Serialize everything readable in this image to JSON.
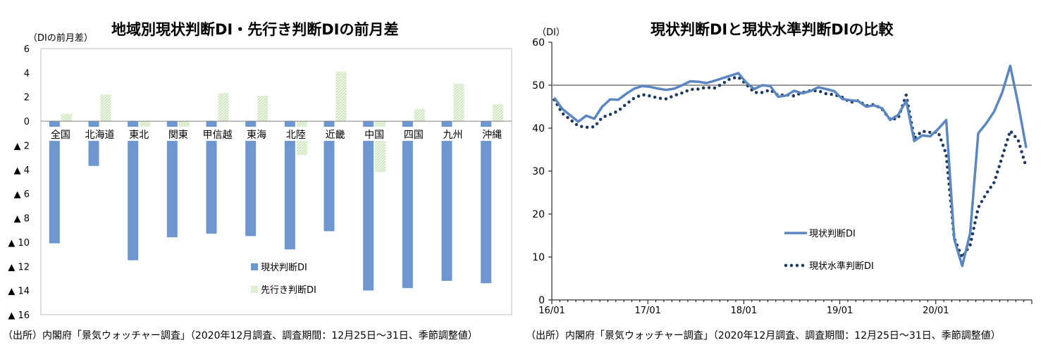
{
  "charts": {
    "left": {
      "title": "地域別現状判断DI・先行き判断DIの前月差",
      "unit": "（DIの前月差）",
      "source": "（出所）内閣府「景気ウォッチャー調査」（2020年12月調査、調査期間：12月25日～31日、季節調整値）"
    },
    "right": {
      "title": "現状判断DIと現状水準判断DIの比較",
      "unit": "（DI）",
      "source": "（出所）内閣府「景気ウォッチャー調査」（2020年12月調査、調査期間：12月25日～31日、季節調整値）"
    }
  },
  "colors": {
    "bar_current": "#6f97cf",
    "bar_outlook": "#c5e3b0",
    "line_current": "#5b86c0",
    "line_level": "#1f3a5f",
    "reference_line": "#999999"
  },
  "chart_data": [
    {
      "type": "bar",
      "title": "地域別現状判断DI・先行き判断DIの前月差",
      "ylabel": "（DIの前月差）",
      "ylim": [
        -16,
        6
      ],
      "yticks": [
        6,
        4,
        2,
        0,
        -2,
        -4,
        -6,
        -8,
        -10,
        -12,
        -14,
        -16
      ],
      "ytick_labels": [
        "6",
        "4",
        "2",
        "0",
        "▲ 2",
        "▲ 4",
        "▲ 6",
        "▲ 8",
        "▲ 10",
        "▲ 12",
        "▲ 14",
        "▲ 16"
      ],
      "categories": [
        "全国",
        "北海道",
        "東北",
        "関東",
        "甲信越",
        "東海",
        "北陸",
        "近畿",
        "中国",
        "四国",
        "九州",
        "沖縄"
      ],
      "series": [
        {
          "name": "現状判断DI",
          "values": [
            -10.1,
            -3.7,
            -11.5,
            -9.6,
            -9.3,
            -9.5,
            -10.6,
            -9.1,
            -14.0,
            -13.8,
            -13.2,
            -13.4
          ]
        },
        {
          "name": "先行き判断DI",
          "values": [
            0.6,
            2.2,
            -0.9,
            -0.9,
            2.3,
            2.1,
            -2.8,
            4.1,
            -4.2,
            1.0,
            3.1,
            1.4
          ]
        }
      ],
      "legend_position": "bottom-right",
      "grid": false
    },
    {
      "type": "line",
      "title": "現状判断DIと現状水準判断DIの比較",
      "ylabel": "（DI）",
      "ylim": [
        0,
        60
      ],
      "yticks": [
        0,
        10,
        20,
        30,
        40,
        50,
        60
      ],
      "xticks": [
        "16/01",
        "17/01",
        "18/01",
        "19/01",
        "20/01"
      ],
      "x_start": "2016-01",
      "x_end": "2020-12",
      "reference_line": 50,
      "series": [
        {
          "name": "現状判断DI",
          "style": "solid",
          "values": [
            47.1,
            44.5,
            43.0,
            41.5,
            42.9,
            42.2,
            45.0,
            46.7,
            46.6,
            48.0,
            49.2,
            49.8,
            49.6,
            49.2,
            48.9,
            49.2,
            50.0,
            50.9,
            50.8,
            50.5,
            51.0,
            51.6,
            52.2,
            52.8,
            50.6,
            49.1,
            50.0,
            49.8,
            47.3,
            47.6,
            48.7,
            48.1,
            48.6,
            49.5,
            49.1,
            48.6,
            46.8,
            46.5,
            46.3,
            45.0,
            45.3,
            44.6,
            41.9,
            43.1,
            46.4,
            37.0,
            38.3,
            38.1,
            39.8,
            41.9,
            14.2,
            7.9,
            15.6,
            38.8,
            41.1,
            43.9,
            48.3,
            54.5,
            45.6,
            35.4
          ]
        },
        {
          "name": "現状水準判断DI",
          "style": "dotted",
          "values": [
            46.6,
            43.5,
            42.0,
            40.5,
            40.2,
            40.3,
            42.5,
            43.2,
            44.0,
            45.6,
            47.0,
            47.8,
            47.5,
            47.0,
            46.8,
            47.6,
            48.2,
            49.0,
            49.1,
            49.5,
            49.3,
            50.3,
            51.5,
            51.9,
            50.2,
            48.3,
            48.3,
            48.9,
            47.6,
            47.8,
            47.5,
            48.3,
            48.7,
            48.7,
            48.0,
            47.8,
            47.2,
            46.0,
            46.4,
            45.2,
            45.5,
            44.4,
            42.0,
            42.3,
            47.7,
            37.7,
            39.3,
            39.0,
            39.1,
            33.9,
            14.4,
            9.9,
            12.8,
            21.5,
            24.7,
            27.4,
            33.3,
            39.4,
            37.2,
            30.9
          ]
        }
      ],
      "legend_position": "center-right",
      "grid": false
    }
  ]
}
